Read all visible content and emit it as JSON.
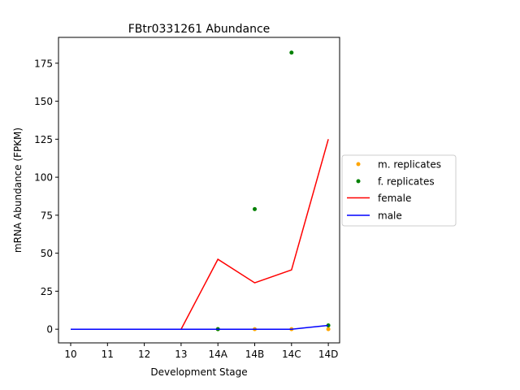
{
  "chart_data": {
    "type": "line",
    "title": "FBtr0331261 Abundance",
    "xlabel": "Development Stage",
    "ylabel": "mRNA Abundance (FPKM)",
    "categories": [
      "10",
      "11",
      "12",
      "13",
      "14A",
      "14B",
      "14C",
      "14D"
    ],
    "ylim": [
      -9,
      192
    ],
    "yticks": [
      0,
      25,
      50,
      75,
      100,
      125,
      150,
      175
    ],
    "grid": false,
    "legend_position": "center-right-outside",
    "series": [
      {
        "name": "m. replicates",
        "kind": "scatter",
        "color": "#ffa500",
        "points": [
          {
            "x": "14A",
            "y": 0
          },
          {
            "x": "14B",
            "y": 0
          },
          {
            "x": "14C",
            "y": 0
          },
          {
            "x": "14D",
            "y": 0
          }
        ]
      },
      {
        "name": "f. replicates",
        "kind": "scatter",
        "color": "#008000",
        "points": [
          {
            "x": "14A",
            "y": 0
          },
          {
            "x": "14B",
            "y": 79
          },
          {
            "x": "14C",
            "y": 182
          },
          {
            "x": "14D",
            "y": 2.5
          }
        ]
      },
      {
        "name": "female",
        "kind": "line",
        "color": "#ff0000",
        "values": [
          0,
          0,
          0,
          0,
          46,
          30.5,
          39,
          125
        ]
      },
      {
        "name": "male",
        "kind": "line",
        "color": "#0000ff",
        "values": [
          0,
          0,
          0,
          0,
          0,
          0,
          0,
          2.5
        ]
      }
    ]
  }
}
